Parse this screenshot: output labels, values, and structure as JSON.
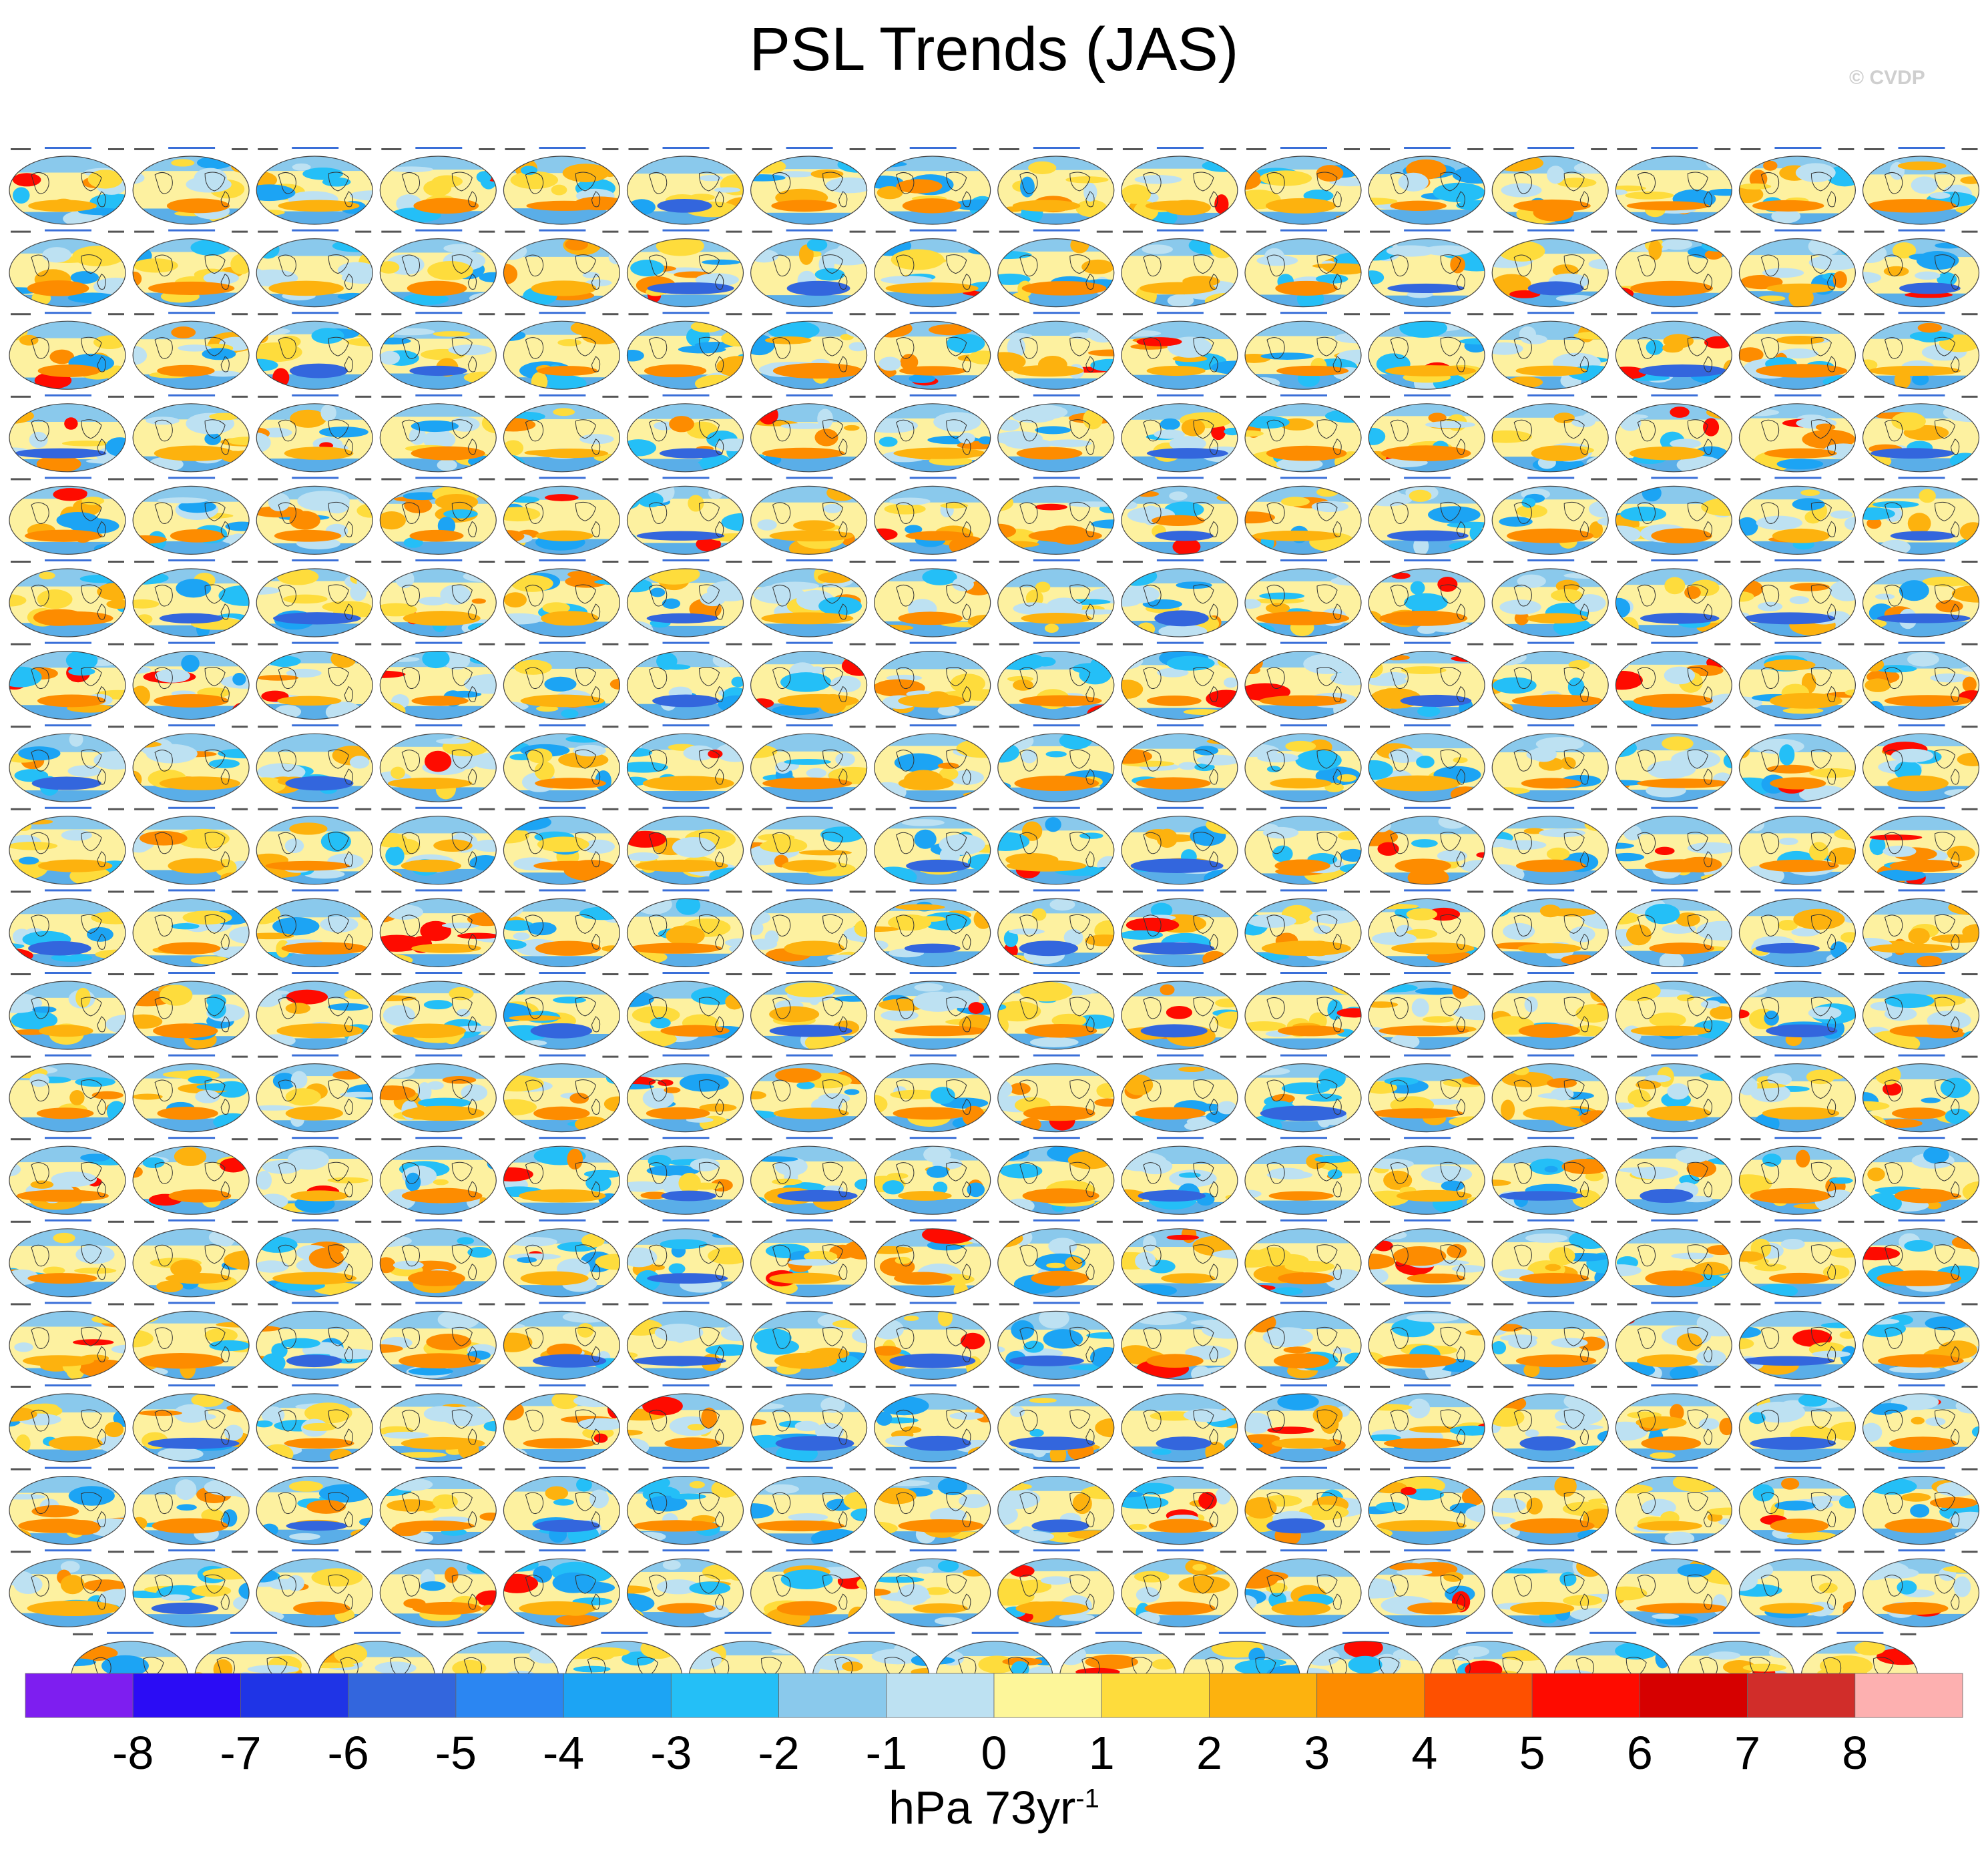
{
  "title": "PSL Trends (JAS)",
  "watermark": "© CVDP",
  "colors": {
    "levels": [
      "#7e1ef0",
      "#2b0cf5",
      "#1f34e6",
      "#3366dd",
      "#2b86f2",
      "#1ca4f4",
      "#24bff7",
      "#8ac9ec",
      "#bde1f2",
      "#fdf69a",
      "#fedc3c",
      "#fdb20e",
      "#fd8c00",
      "#fe5000",
      "#fe0b00",
      "#d60000",
      "#d12d2a",
      "#fdb0b0"
    ]
  },
  "chart_data": {
    "type": "heatmap",
    "description_note": "",
    "panel_grid": {
      "rows": 19,
      "columns_full_row": 16,
      "columns_last_row": 15,
      "panel_count": 303
    },
    "colorbar": {
      "ticks": [
        "-8",
        "-7",
        "-6",
        "-5",
        "-4",
        "-3",
        "-2",
        "-1",
        "0",
        "1",
        "2",
        "3",
        "4",
        "5",
        "6",
        "7",
        "8"
      ],
      "unit": "hPa 73yr",
      "unit_superscript": "-1",
      "range": [
        -9,
        9
      ],
      "bins": 18
    }
  }
}
